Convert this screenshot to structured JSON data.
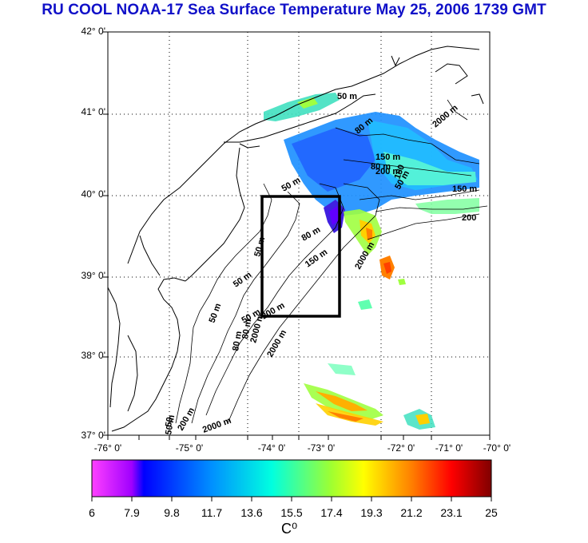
{
  "title": "RU COOL  NOAA-17 Sea Surface Temperature May 25, 2006 1739 GMT",
  "lat_labels": [
    "42° 0'",
    "41° 0'",
    "40° 0'",
    "39° 0'",
    "38° 0'",
    "37° 0'"
  ],
  "lon_labels": [
    "-76° 0'",
    "-75° 0'",
    "-74° 0'",
    "-73° 0'",
    "-72° 0'",
    "-71° 0'",
    "-70° 0'"
  ],
  "colorbar": {
    "ticks": [
      "6",
      "7.9",
      "9.8",
      "11.7",
      "13.6",
      "15.5",
      "17.4",
      "19.3",
      "21.2",
      "23.1",
      "25"
    ],
    "unit": "C⁰",
    "min": 6,
    "max": 25
  },
  "contour_labels": [
    "50 m",
    "80 m",
    "150 m",
    "200 m",
    "2000 m",
    "50 m",
    "80 m",
    "150 m",
    "50 m",
    "80 m",
    "150 m",
    "200",
    "50 m",
    "2000 m",
    "50 m",
    "2000 m",
    "50 m",
    "50 m",
    "80 m",
    "150",
    "80 m",
    "200 m",
    "2000 m",
    "50",
    "50 m",
    "200 m",
    "2000 m"
  ],
  "study_box": {
    "lon_min": -73.5,
    "lon_max": -72.3,
    "lat_min": 38.5,
    "lat_max": 40.0
  },
  "colors": {
    "title": "#1010c8",
    "box": "#000000"
  }
}
